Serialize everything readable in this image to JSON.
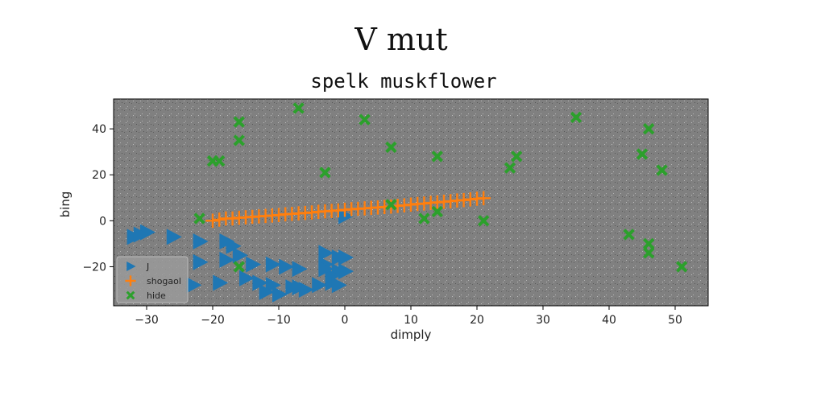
{
  "figure": {
    "suptitle": "V mut"
  },
  "chart_data": {
    "type": "scatter",
    "title": "spelk muskflower",
    "xlabel": "dimply",
    "ylabel": "bing",
    "xlim": [
      -35,
      55
    ],
    "ylim": [
      -37,
      53
    ],
    "xticks": [
      -30,
      -20,
      -10,
      0,
      10,
      20,
      30,
      40,
      50
    ],
    "yticks": [
      -20,
      0,
      20,
      40
    ],
    "xtick_labels": [
      "−30",
      "−20",
      "−10",
      "0",
      "10",
      "20",
      "30",
      "40",
      "50"
    ],
    "ytick_labels": [
      "−20",
      "0",
      "20",
      "40"
    ],
    "grid": false,
    "legend_position": "lower-left",
    "axes_background": "#808080",
    "series": [
      {
        "name": "J",
        "marker": "triangle-right",
        "color": "#1f77b4",
        "points": [
          [
            -30,
            -5
          ],
          [
            -32,
            -7
          ],
          [
            -26,
            -7
          ],
          [
            -22,
            -9
          ],
          [
            -18,
            -9
          ],
          [
            -17,
            -11
          ],
          [
            -22,
            -18
          ],
          [
            -18,
            -17
          ],
          [
            -16,
            -15
          ],
          [
            -14,
            -19
          ],
          [
            -11,
            -19
          ],
          [
            -9,
            -20
          ],
          [
            -7,
            -21
          ],
          [
            -19,
            -27
          ],
          [
            -23,
            -28
          ],
          [
            -15,
            -25
          ],
          [
            -13,
            -27
          ],
          [
            -11,
            -28
          ],
          [
            -8,
            -29
          ],
          [
            -6,
            -30
          ],
          [
            -4,
            -28
          ],
          [
            -2,
            -27
          ],
          [
            -12,
            -31
          ],
          [
            -10,
            -32
          ],
          [
            -7,
            -29
          ],
          [
            -3,
            -14
          ],
          [
            -3,
            -19
          ],
          [
            -1,
            -16
          ],
          [
            0,
            -16
          ],
          [
            -1,
            -22
          ],
          [
            0,
            -22
          ],
          [
            -2,
            -24
          ],
          [
            -3,
            -21
          ],
          [
            0,
            2
          ],
          [
            -1,
            -28
          ],
          [
            -31,
            -6
          ]
        ]
      },
      {
        "name": "shogaol",
        "marker": "plus",
        "color": "#ff7f0e",
        "points": [
          [
            -20,
            0
          ],
          [
            -19,
            0.5
          ],
          [
            -18,
            1
          ],
          [
            -17,
            1
          ],
          [
            -16,
            1.3
          ],
          [
            -15,
            1.5
          ],
          [
            -14,
            1.7
          ],
          [
            -13,
            1.9
          ],
          [
            -12,
            2.1
          ],
          [
            -11,
            2.3
          ],
          [
            -10,
            2.5
          ],
          [
            -9,
            2.8
          ],
          [
            -8,
            3
          ],
          [
            -7,
            3.2
          ],
          [
            -6,
            3.4
          ],
          [
            -5,
            3.6
          ],
          [
            -4,
            3.9
          ],
          [
            -3,
            4.1
          ],
          [
            -2,
            4.3
          ],
          [
            -1,
            4.5
          ],
          [
            0,
            4.8
          ],
          [
            1,
            5
          ],
          [
            2,
            5.2
          ],
          [
            3,
            5.4
          ],
          [
            4,
            5.6
          ],
          [
            5,
            5.8
          ],
          [
            6,
            6
          ],
          [
            7,
            6.2
          ],
          [
            8,
            6.5
          ],
          [
            9,
            6.7
          ],
          [
            10,
            7
          ],
          [
            11,
            7.3
          ],
          [
            12,
            7.5
          ],
          [
            13,
            7.8
          ],
          [
            14,
            8
          ],
          [
            15,
            8.3
          ],
          [
            16,
            8.5
          ],
          [
            17,
            8.8
          ],
          [
            18,
            9
          ],
          [
            19,
            9.3
          ],
          [
            20,
            9.6
          ],
          [
            21,
            9.8
          ]
        ]
      },
      {
        "name": "hide",
        "marker": "x-filled",
        "color": "#2ca02c",
        "points": [
          [
            -7,
            49
          ],
          [
            -16,
            43
          ],
          [
            3,
            44
          ],
          [
            -16,
            35
          ],
          [
            7,
            32
          ],
          [
            -20,
            26
          ],
          [
            -19,
            26
          ],
          [
            -3,
            21
          ],
          [
            14,
            28
          ],
          [
            26,
            28
          ],
          [
            25,
            23
          ],
          [
            35,
            45
          ],
          [
            46,
            40
          ],
          [
            45,
            29
          ],
          [
            48,
            22
          ],
          [
            -22,
            1
          ],
          [
            7,
            7
          ],
          [
            12,
            1
          ],
          [
            14,
            4
          ],
          [
            21,
            0
          ],
          [
            43,
            -6
          ],
          [
            46,
            -10
          ],
          [
            46,
            -14
          ],
          [
            51,
            -20
          ],
          [
            -16,
            -20
          ]
        ]
      }
    ]
  }
}
